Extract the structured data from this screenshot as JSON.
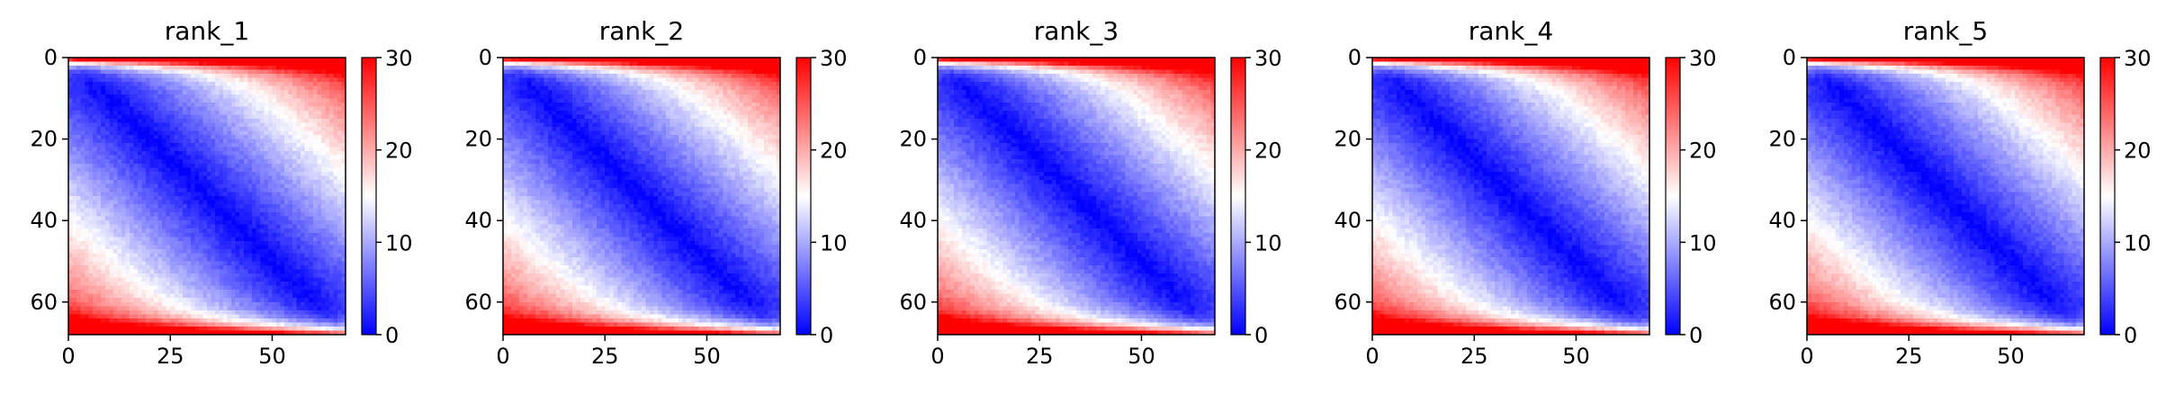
{
  "chart_data": [
    {
      "type": "heatmap",
      "title": "rank_1",
      "xlim": [
        0,
        68
      ],
      "ylim": [
        68,
        0
      ],
      "xticks": [
        "0",
        "25",
        "50"
      ],
      "yticks": [
        "0",
        "20",
        "40",
        "60"
      ],
      "colorbar": {
        "min": 0,
        "max": 30,
        "ticks": [
          "0",
          "10",
          "20",
          "30"
        ],
        "colormap": "bwr"
      },
      "pattern": "near-zero values along the main diagonal, rising toward the off-diagonal corners; top and bottom edge rows ≈ 30"
    },
    {
      "type": "heatmap",
      "title": "rank_2",
      "xlim": [
        0,
        68
      ],
      "ylim": [
        68,
        0
      ],
      "xticks": [
        "0",
        "25",
        "50"
      ],
      "yticks": [
        "0",
        "20",
        "40",
        "60"
      ],
      "colorbar": {
        "min": 0,
        "max": 30,
        "ticks": [
          "0",
          "10",
          "20",
          "30"
        ],
        "colormap": "bwr"
      },
      "pattern": "near-zero values along the main diagonal, rising toward the off-diagonal corners; top and bottom edge rows ≈ 30"
    },
    {
      "type": "heatmap",
      "title": "rank_3",
      "xlim": [
        0,
        68
      ],
      "ylim": [
        68,
        0
      ],
      "xticks": [
        "0",
        "25",
        "50"
      ],
      "yticks": [
        "0",
        "20",
        "40",
        "60"
      ],
      "colorbar": {
        "min": 0,
        "max": 30,
        "ticks": [
          "0",
          "10",
          "20",
          "30"
        ],
        "colormap": "bwr"
      },
      "pattern": "near-zero values along the main diagonal, rising toward the off-diagonal corners; top and bottom edge rows ≈ 30"
    },
    {
      "type": "heatmap",
      "title": "rank_4",
      "xlim": [
        0,
        68
      ],
      "ylim": [
        68,
        0
      ],
      "xticks": [
        "0",
        "25",
        "50"
      ],
      "yticks": [
        "0",
        "20",
        "40",
        "60"
      ],
      "colorbar": {
        "min": 0,
        "max": 30,
        "ticks": [
          "0",
          "10",
          "20",
          "30"
        ],
        "colormap": "bwr"
      },
      "pattern": "near-zero values along the main diagonal, rising toward the off-diagonal corners; top and bottom edge rows ≈ 30"
    },
    {
      "type": "heatmap",
      "title": "rank_5",
      "xlim": [
        0,
        68
      ],
      "ylim": [
        68,
        0
      ],
      "xticks": [
        "0",
        "25",
        "50"
      ],
      "yticks": [
        "0",
        "20",
        "40",
        "60"
      ],
      "colorbar": {
        "min": 0,
        "max": 30,
        "ticks": [
          "0",
          "10",
          "20",
          "30"
        ],
        "colormap": "bwr"
      },
      "pattern": "near-zero values along the main diagonal, rising toward the off-diagonal corners; top and bottom edge rows ≈ 30"
    }
  ],
  "colors": {
    "low": "#0000ff",
    "mid": "#ffffff",
    "high": "#ff0000",
    "axis": "#000000"
  }
}
